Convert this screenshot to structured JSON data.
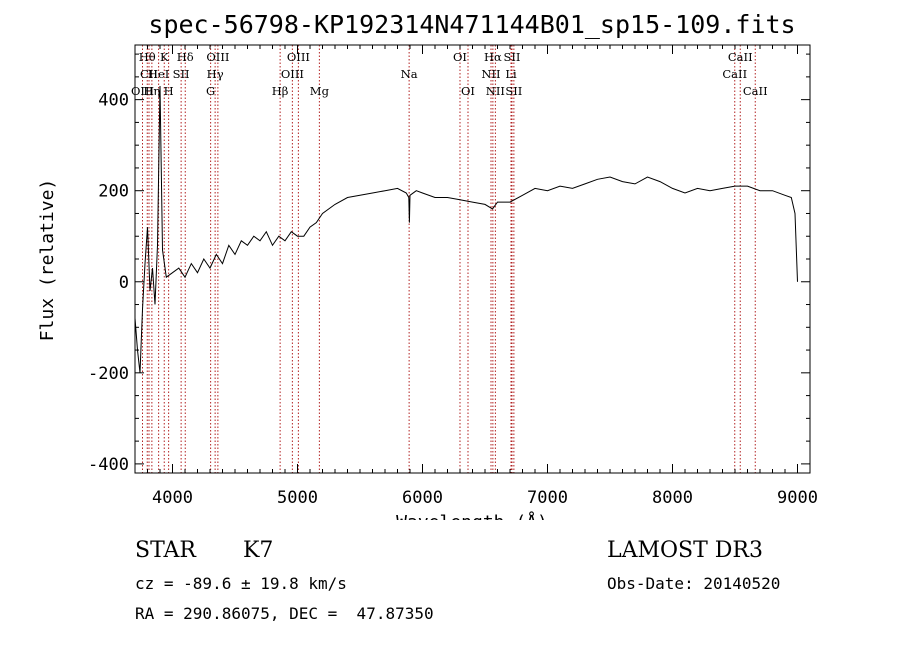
{
  "chart_data": {
    "type": "line",
    "title": "spec-56798-KP192314N471144B01_sp15-109.fits",
    "xlabel": "Wavelength (Å)",
    "ylabel": "Flux (relative)",
    "xlim": [
      3700,
      9100
    ],
    "ylim": [
      -420,
      520
    ],
    "xticks": [
      4000,
      5000,
      6000,
      7000,
      8000,
      9000
    ],
    "xtick_labels": [
      "4000",
      "5000",
      "6000",
      "7000",
      "8000",
      "9000"
    ],
    "yticks": [
      -400,
      -200,
      0,
      200,
      400
    ],
    "ytick_labels": [
      "-400",
      "-200",
      "0",
      "200",
      "400"
    ],
    "grid": false,
    "series": [
      {
        "name": "flux",
        "x": [
          3700,
          3720,
          3740,
          3760,
          3780,
          3800,
          3820,
          3840,
          3860,
          3880,
          3900,
          3920,
          3950,
          4000,
          4050,
          4100,
          4150,
          4200,
          4250,
          4300,
          4350,
          4400,
          4450,
          4500,
          4550,
          4600,
          4650,
          4700,
          4750,
          4800,
          4850,
          4900,
          4950,
          5000,
          5050,
          5100,
          5150,
          5200,
          5300,
          5400,
          5500,
          5600,
          5700,
          5800,
          5870,
          5890,
          5895,
          5900,
          5950,
          6000,
          6100,
          6200,
          6300,
          6400,
          6500,
          6560,
          6600,
          6700,
          6800,
          6900,
          7000,
          7100,
          7200,
          7300,
          7400,
          7500,
          7600,
          7700,
          7800,
          7900,
          8000,
          8100,
          8200,
          8300,
          8400,
          8500,
          8600,
          8700,
          8800,
          8900,
          8950,
          8980,
          9000
        ],
        "y": [
          -80,
          -150,
          -200,
          -60,
          40,
          120,
          -20,
          30,
          -50,
          80,
          430,
          70,
          10,
          20,
          30,
          10,
          40,
          20,
          50,
          30,
          60,
          40,
          80,
          60,
          90,
          80,
          100,
          90,
          110,
          80,
          100,
          90,
          110,
          100,
          100,
          120,
          130,
          150,
          170,
          185,
          190,
          195,
          200,
          205,
          195,
          185,
          130,
          190,
          200,
          195,
          185,
          185,
          180,
          175,
          170,
          160,
          175,
          175,
          190,
          205,
          200,
          210,
          205,
          215,
          225,
          230,
          220,
          215,
          230,
          220,
          205,
          195,
          205,
          200,
          205,
          210,
          210,
          200,
          200,
          190,
          185,
          150,
          0
        ]
      }
    ],
    "lines": [
      {
        "name": "Hθ",
        "wl": 3798,
        "row": 0
      },
      {
        "name": "CII",
        "wl": 3812,
        "row": 1
      },
      {
        "name": "OIII",
        "wl": 3760,
        "row": 2
      },
      {
        "name": "Hη",
        "wl": 3835,
        "row": 2
      },
      {
        "name": "HeI",
        "wl": 3889,
        "row": 1
      },
      {
        "name": "K",
        "wl": 3934,
        "row": 0
      },
      {
        "name": "H",
        "wl": 3969,
        "row": 2
      },
      {
        "name": "Hδ",
        "wl": 4102,
        "row": 0
      },
      {
        "name": "SII",
        "wl": 4069,
        "row": 1
      },
      {
        "name": "OIII",
        "wl": 4363,
        "row": 0
      },
      {
        "name": "Hγ",
        "wl": 4341,
        "row": 1
      },
      {
        "name": "G",
        "wl": 4305,
        "row": 2
      },
      {
        "name": "Hβ",
        "wl": 4861,
        "row": 2
      },
      {
        "name": "OIII",
        "wl": 4959,
        "row": 1
      },
      {
        "name": "OIII",
        "wl": 5007,
        "row": 0
      },
      {
        "name": "Mg",
        "wl": 5175,
        "row": 2
      },
      {
        "name": "Na",
        "wl": 5893,
        "row": 1
      },
      {
        "name": "OI",
        "wl": 6300,
        "row": 0
      },
      {
        "name": "OI",
        "wl": 6364,
        "row": 2
      },
      {
        "name": "NII",
        "wl": 6548,
        "row": 1
      },
      {
        "name": "Hα",
        "wl": 6563,
        "row": 0
      },
      {
        "name": "NII",
        "wl": 6583,
        "row": 2
      },
      {
        "name": "Li",
        "wl": 6708,
        "row": 1
      },
      {
        "name": "SII",
        "wl": 6716,
        "row": 0
      },
      {
        "name": "SII",
        "wl": 6731,
        "row": 2
      },
      {
        "name": "CaII",
        "wl": 8498,
        "row": 1
      },
      {
        "name": "CaII",
        "wl": 8542,
        "row": 0
      },
      {
        "name": "CaII",
        "wl": 8662,
        "row": 2
      }
    ]
  },
  "info": {
    "object_class": "STAR",
    "subclass": "K7",
    "survey": "LAMOST DR3",
    "cz": "cz = -89.6 ± 19.8 km/s",
    "obs_date": "Obs-Date: 20140520",
    "coords": "RA = 290.86075, DEC =  47.87350"
  }
}
